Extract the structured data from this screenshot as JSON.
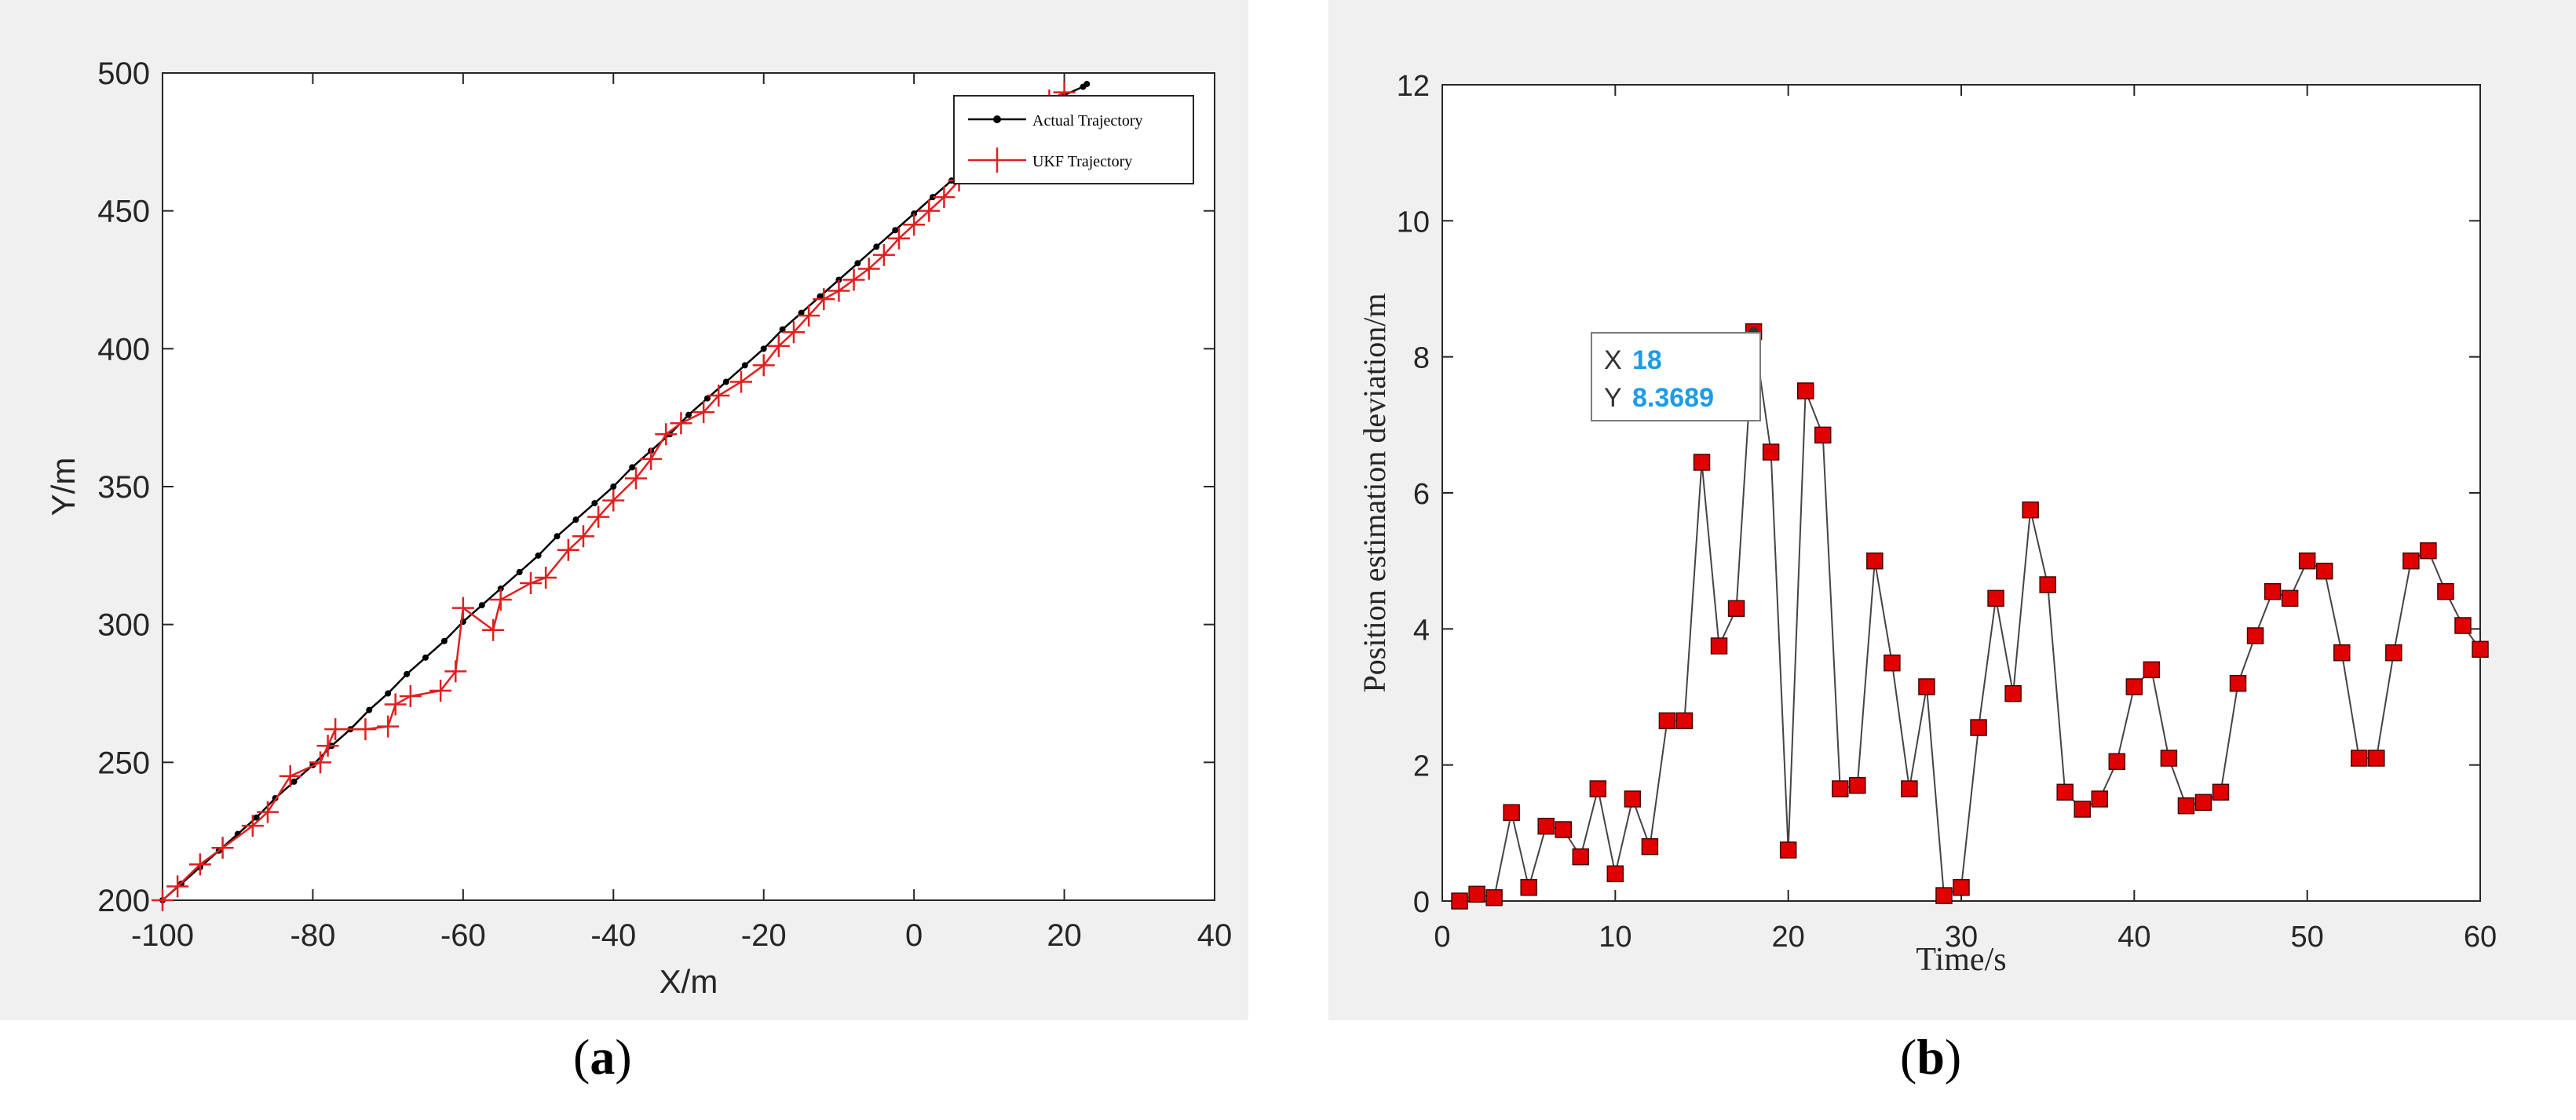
{
  "panels": [
    {
      "label": "a"
    },
    {
      "label": "b"
    }
  ],
  "chart_data": [
    {
      "type": "line",
      "xlabel": "X/m",
      "ylabel": "Y/m",
      "xlim": [
        -100,
        40
      ],
      "ylim": [
        200,
        500
      ],
      "xticks": [
        -100,
        -80,
        -60,
        -40,
        -20,
        0,
        20,
        40
      ],
      "yticks": [
        200,
        250,
        300,
        350,
        400,
        450,
        500
      ],
      "grid": false,
      "legend_position": "top-right",
      "series": [
        {
          "name": "Actual Trajectory",
          "color": "#000000",
          "marker": "dot",
          "x": [
            -100,
            -97.5,
            -95,
            -92.5,
            -90,
            -87.5,
            -85,
            -82.5,
            -80,
            -77.5,
            -75,
            -72.5,
            -70,
            -67.5,
            -65,
            -62.5,
            -60,
            -57.5,
            -55,
            -52.5,
            -50,
            -47.5,
            -45,
            -42.5,
            -40,
            -37.5,
            -35,
            -32.5,
            -30,
            -27.5,
            -25,
            -22.5,
            -20,
            -17.5,
            -15,
            -12.5,
            -10,
            -7.5,
            -5,
            -2.5,
            0,
            2.5,
            5,
            7.5,
            10,
            12.5,
            15,
            17.5,
            20,
            22.5,
            23
          ],
          "y": [
            200,
            206,
            212,
            218,
            224,
            230,
            237,
            243,
            249,
            256,
            262,
            269,
            275,
            282,
            288,
            294,
            301,
            307,
            313,
            319,
            325,
            332,
            338,
            344,
            350,
            357,
            363,
            369,
            376,
            382,
            388,
            394,
            400,
            407,
            413,
            419,
            425,
            431,
            437,
            443,
            449,
            455,
            461,
            467,
            473,
            479,
            484,
            489,
            492,
            495,
            496
          ]
        },
        {
          "name": "UKF Trajectory",
          "color": "#e02020",
          "marker": "plus",
          "x": [
            -100,
            -98,
            -95,
            -92,
            -88,
            -86,
            -83,
            -79,
            -78,
            -77,
            -73,
            -70,
            -69,
            -67,
            -63,
            -61,
            -60,
            -56,
            -55,
            -51,
            -49,
            -46,
            -44,
            -42,
            -40,
            -37,
            -35,
            -33,
            -31,
            -28,
            -26,
            -23,
            -20,
            -18,
            -16,
            -14,
            -12,
            -10,
            -8,
            -6,
            -4,
            -2,
            0,
            2,
            4,
            6,
            8,
            10,
            12,
            14,
            16,
            18,
            20
          ],
          "y": [
            200,
            205,
            213,
            219,
            227,
            232,
            245,
            250,
            256,
            262,
            262,
            263,
            271,
            274,
            276,
            283,
            306,
            298,
            309,
            315,
            317,
            327,
            332,
            339,
            345,
            353,
            360,
            369,
            373,
            377,
            383,
            388,
            394,
            401,
            406,
            412,
            418,
            421,
            425,
            429,
            434,
            440,
            445,
            450,
            455,
            461,
            466,
            472,
            477,
            482,
            487,
            490,
            493
          ]
        }
      ]
    },
    {
      "type": "line",
      "xlabel": "Time/s",
      "ylabel": "Position estimation deviation/m",
      "xlim": [
        0,
        60
      ],
      "ylim": [
        0,
        12
      ],
      "xticks": [
        0,
        10,
        20,
        30,
        40,
        50,
        60
      ],
      "yticks": [
        0,
        2,
        4,
        6,
        8,
        10,
        12
      ],
      "grid": false,
      "series": [
        {
          "color": "#e00000",
          "marker": "square",
          "x": [
            1,
            2,
            3,
            4,
            5,
            6,
            7,
            8,
            9,
            10,
            11,
            12,
            13,
            14,
            15,
            16,
            17,
            18,
            19,
            20,
            21,
            22,
            23,
            24,
            25,
            26,
            27,
            28,
            29,
            30,
            31,
            32,
            33,
            34,
            35,
            36,
            37,
            38,
            39,
            40,
            41,
            42,
            43,
            44,
            45,
            46,
            47,
            48,
            49,
            50,
            51,
            52,
            53,
            54,
            55,
            56,
            57,
            58,
            59,
            60
          ],
          "y": [
            0.0,
            0.1,
            0.05,
            1.3,
            0.2,
            1.1,
            1.05,
            0.65,
            1.65,
            0.4,
            1.5,
            0.8,
            2.65,
            2.65,
            6.45,
            3.75,
            4.3,
            8.37,
            6.6,
            0.75,
            7.5,
            6.85,
            1.65,
            1.7,
            5.0,
            3.5,
            1.65,
            3.15,
            0.08,
            0.2,
            2.55,
            4.45,
            3.05,
            5.75,
            4.65,
            1.6,
            1.35,
            1.5,
            2.05,
            3.15,
            3.4,
            2.1,
            1.4,
            1.45,
            1.6,
            3.2,
            3.9,
            4.55,
            4.45,
            5.0,
            4.85,
            3.65,
            2.1,
            2.1,
            3.65,
            5.0,
            5.15,
            4.55,
            4.05,
            3.7
          ]
        }
      ],
      "annotation": {
        "x_label": "X",
        "x_value": "18",
        "y_label": "Y",
        "y_value": "8.3689",
        "value_color": "#1e9be8"
      }
    }
  ]
}
